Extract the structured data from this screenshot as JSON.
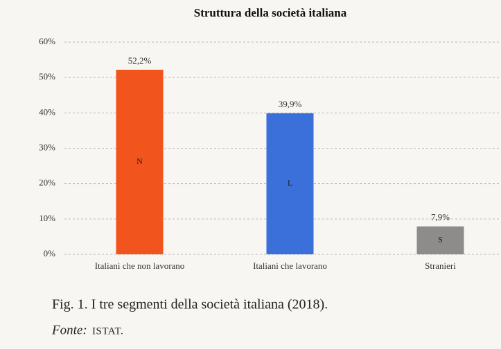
{
  "chart_data": {
    "type": "bar",
    "title": "Struttura della società italiana",
    "categories": [
      "Italiani che non lavorano",
      "Italiani che lavorano",
      "Stranieri"
    ],
    "values": [
      52.2,
      39.9,
      7.9
    ],
    "value_labels": [
      "52,2%",
      "39,9%",
      "7,9%"
    ],
    "bar_labels": [
      "N",
      "L",
      "S"
    ],
    "colors": [
      "#f2541d",
      "#3b6fd9",
      "#8e8c8a"
    ],
    "ylim": [
      0,
      60
    ],
    "yticks": [
      {
        "value": 0,
        "label": "0%"
      },
      {
        "value": 10,
        "label": "10%"
      },
      {
        "value": 20,
        "label": "20%"
      },
      {
        "value": 30,
        "label": "30%"
      },
      {
        "value": 40,
        "label": "40%"
      },
      {
        "value": 50,
        "label": "50%"
      },
      {
        "value": 60,
        "label": "60%"
      }
    ],
    "grid": true
  },
  "caption": "Fig. 1. I tre segmenti della società italiana (2018).",
  "source_label": "Fonte:",
  "source": "ISTAT."
}
